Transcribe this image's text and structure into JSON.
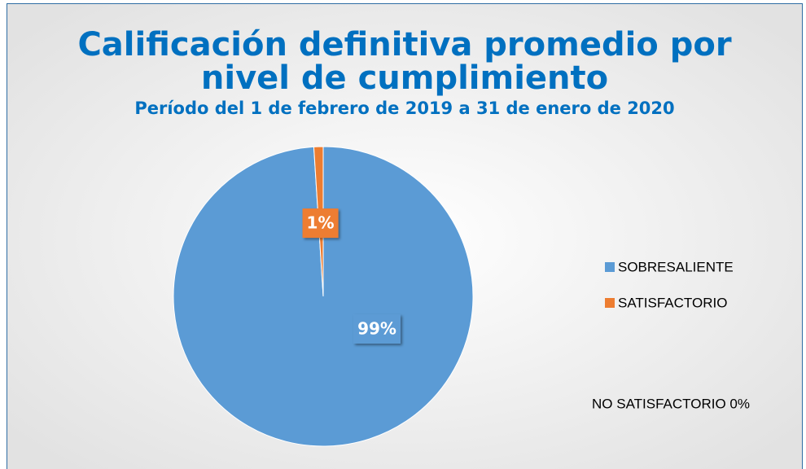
{
  "chart_data": {
    "type": "pie",
    "title": [
      "Calificación definitiva promedio por",
      "nivel de cumplimiento"
    ],
    "subtitle": "Período del 1 de febrero de 2019 a 31 de enero de 2020",
    "categories": [
      "SOBRESALIENTE",
      "SATISFACTORIO"
    ],
    "values": [
      99,
      1
    ],
    "value_labels": [
      "99%",
      "1%"
    ],
    "colors": [
      "#5b9bd5",
      "#ed7d31"
    ],
    "legend": "right",
    "annotation": "NO SATISFACTORIO 0%"
  }
}
